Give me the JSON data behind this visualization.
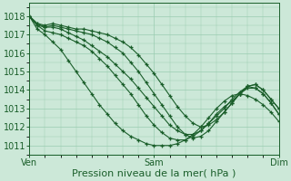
{
  "bg_color": "#cce8d8",
  "grid_color": "#99ccb0",
  "line_color": "#1a5e2a",
  "xlabel": "Pression niveau de la mer( hPa )",
  "xlabel_fontsize": 8,
  "xtick_labels": [
    "Ven",
    "Sam",
    "Dim"
  ],
  "xtick_positions": [
    0,
    48,
    96
  ],
  "ylim": [
    1010.5,
    1018.7
  ],
  "yticks": [
    1011,
    1012,
    1013,
    1014,
    1015,
    1016,
    1017,
    1018
  ],
  "xlim": [
    0,
    96
  ],
  "tick_fontsize": 7,
  "series": [
    {
      "x": [
        0,
        3,
        6,
        9,
        12,
        15,
        18,
        21,
        24,
        27,
        30,
        33,
        36,
        39,
        42,
        45,
        48,
        51,
        54,
        57,
        60,
        63,
        66,
        69,
        72,
        75,
        78,
        81,
        84,
        87,
        90,
        93,
        96
      ],
      "y": [
        1018.0,
        1017.3,
        1017.0,
        1016.6,
        1016.2,
        1015.6,
        1015.0,
        1014.4,
        1013.8,
        1013.2,
        1012.7,
        1012.2,
        1011.8,
        1011.5,
        1011.3,
        1011.1,
        1011.0,
        1011.0,
        1011.0,
        1011.1,
        1011.3,
        1011.6,
        1012.0,
        1012.5,
        1013.0,
        1013.4,
        1013.7,
        1013.8,
        1013.7,
        1013.5,
        1013.2,
        1012.8,
        1012.3
      ]
    },
    {
      "x": [
        0,
        3,
        6,
        9,
        12,
        15,
        18,
        21,
        24,
        27,
        30,
        33,
        36,
        39,
        42,
        45,
        48,
        51,
        54,
        57,
        60,
        63,
        66,
        69,
        72,
        75,
        78,
        81,
        84,
        87,
        90,
        93,
        96
      ],
      "y": [
        1018.0,
        1017.5,
        1017.2,
        1017.1,
        1017.0,
        1016.8,
        1016.6,
        1016.4,
        1016.1,
        1015.7,
        1015.3,
        1014.8,
        1014.3,
        1013.8,
        1013.2,
        1012.6,
        1012.1,
        1011.7,
        1011.4,
        1011.3,
        1011.3,
        1011.5,
        1011.8,
        1012.2,
        1012.7,
        1013.1,
        1013.4,
        1013.8,
        1014.1,
        1014.1,
        1013.8,
        1013.3,
        1012.7
      ]
    },
    {
      "x": [
        0,
        3,
        6,
        9,
        12,
        15,
        18,
        21,
        24,
        27,
        30,
        33,
        36,
        39,
        42,
        45,
        48,
        51,
        54,
        57,
        60,
        63,
        66,
        69,
        72,
        75,
        78,
        81,
        84,
        87,
        90,
        93,
        96
      ],
      "y": [
        1018.0,
        1017.6,
        1017.4,
        1017.4,
        1017.3,
        1017.1,
        1016.9,
        1016.7,
        1016.4,
        1016.1,
        1015.8,
        1015.4,
        1015.0,
        1014.6,
        1014.1,
        1013.6,
        1013.1,
        1012.6,
        1012.1,
        1011.8,
        1011.6,
        1011.6,
        1011.8,
        1012.2,
        1012.6,
        1013.0,
        1013.5,
        1013.9,
        1014.2,
        1014.1,
        1013.8,
        1013.3,
        1012.7
      ]
    },
    {
      "x": [
        0,
        3,
        6,
        9,
        12,
        15,
        18,
        21,
        24,
        27,
        30,
        33,
        36,
        39,
        42,
        45,
        48,
        51,
        54,
        57,
        60,
        63,
        66,
        69,
        72,
        75,
        78,
        81,
        84,
        87,
        90,
        93,
        96
      ],
      "y": [
        1018.0,
        1017.5,
        1017.4,
        1017.5,
        1017.4,
        1017.3,
        1017.2,
        1017.1,
        1017.0,
        1016.8,
        1016.6,
        1016.3,
        1016.0,
        1015.5,
        1015.0,
        1014.4,
        1013.8,
        1013.2,
        1012.6,
        1012.0,
        1011.6,
        1011.4,
        1011.5,
        1011.8,
        1012.3,
        1012.8,
        1013.3,
        1013.8,
        1014.2,
        1014.3,
        1014.0,
        1013.5,
        1013.0
      ]
    },
    {
      "x": [
        0,
        3,
        6,
        9,
        12,
        15,
        18,
        21,
        24,
        27,
        30,
        33,
        36,
        39,
        42,
        45,
        48,
        51,
        54,
        57,
        60,
        63,
        66,
        69,
        72,
        75,
        78,
        81,
        84,
        87,
        90,
        93,
        96
      ],
      "y": [
        1018.0,
        1017.6,
        1017.5,
        1017.6,
        1017.5,
        1017.4,
        1017.3,
        1017.3,
        1017.2,
        1017.1,
        1017.0,
        1016.8,
        1016.6,
        1016.3,
        1015.9,
        1015.4,
        1014.9,
        1014.3,
        1013.7,
        1013.1,
        1012.6,
        1012.2,
        1012.0,
        1012.1,
        1012.4,
        1012.8,
        1013.3,
        1013.8,
        1014.2,
        1014.3,
        1014.0,
        1013.5,
        1013.0
      ]
    }
  ]
}
